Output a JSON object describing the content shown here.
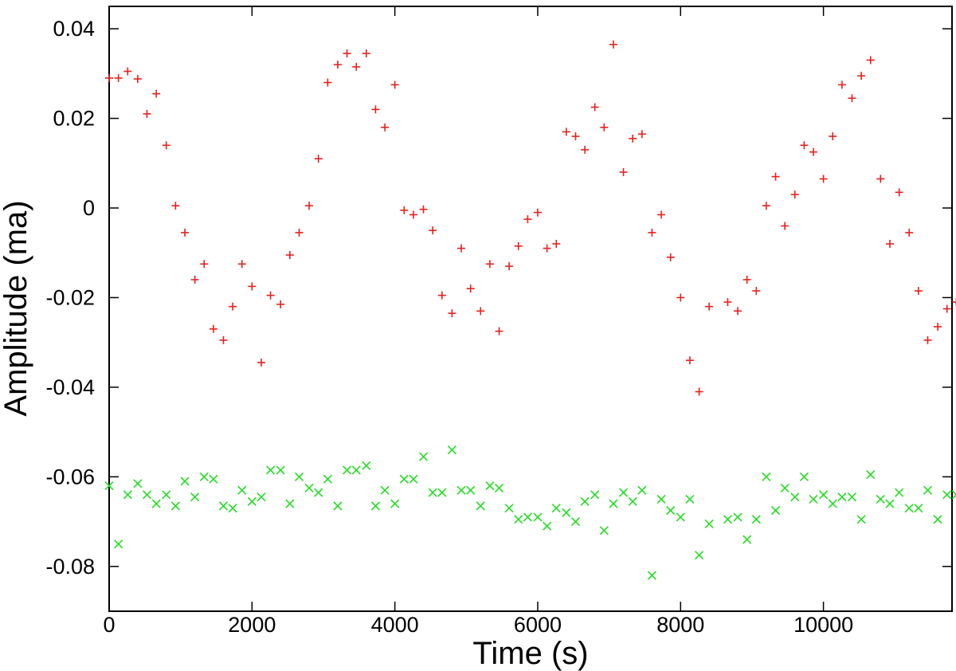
{
  "chart_data": {
    "type": "scatter",
    "title": "",
    "xlabel": "Time (s)",
    "ylabel": "Amplitude (ma)",
    "xlim": [
      0,
      11800
    ],
    "ylim": [
      -0.09,
      0.045
    ],
    "grid": false,
    "legend": "none",
    "x_ticks": [
      0,
      2000,
      4000,
      6000,
      8000,
      10000
    ],
    "x_tick_labels": [
      "0",
      "2000",
      "4000",
      "6000",
      "8000",
      "10000"
    ],
    "y_ticks": [
      0.04,
      0.02,
      0,
      -0.02,
      -0.04,
      -0.06,
      -0.08
    ],
    "y_tick_labels": [
      "0.04",
      "0.02",
      "0",
      "-0.02",
      "-0.04",
      "-0.06",
      "-0.08"
    ],
    "series": [
      {
        "marker": "plus",
        "color": "#e8201c",
        "points": [
          [
            0,
            0.029
          ],
          [
            130,
            0.029
          ],
          [
            260,
            0.0305
          ],
          [
            400,
            0.0288
          ],
          [
            530,
            0.021
          ],
          [
            660,
            0.0255
          ],
          [
            800,
            0.014
          ],
          [
            930,
            0.0005
          ],
          [
            1060,
            -0.0055
          ],
          [
            1200,
            -0.016
          ],
          [
            1330,
            -0.0125
          ],
          [
            1460,
            -0.027
          ],
          [
            1600,
            -0.0295
          ],
          [
            1730,
            -0.022
          ],
          [
            1860,
            -0.0125
          ],
          [
            2000,
            -0.0175
          ],
          [
            2130,
            -0.0345
          ],
          [
            2260,
            -0.0195
          ],
          [
            2400,
            -0.0215
          ],
          [
            2530,
            -0.0105
          ],
          [
            2660,
            -0.0055
          ],
          [
            2800,
            0.0005
          ],
          [
            2930,
            0.011
          ],
          [
            3060,
            0.028
          ],
          [
            3200,
            0.032
          ],
          [
            3330,
            0.0345
          ],
          [
            3460,
            0.0315
          ],
          [
            3600,
            0.0345
          ],
          [
            3730,
            0.022
          ],
          [
            3860,
            0.018
          ],
          [
            4000,
            0.0275
          ],
          [
            4130,
            -0.0005
          ],
          [
            4260,
            -0.0015
          ],
          [
            4400,
            -0.0003
          ],
          [
            4530,
            -0.005
          ],
          [
            4660,
            -0.0195
          ],
          [
            4800,
            -0.0235
          ],
          [
            4930,
            -0.009
          ],
          [
            5060,
            -0.018
          ],
          [
            5200,
            -0.023
          ],
          [
            5330,
            -0.0125
          ],
          [
            5460,
            -0.0275
          ],
          [
            5600,
            -0.013
          ],
          [
            5730,
            -0.0085
          ],
          [
            5860,
            -0.0025
          ],
          [
            6000,
            -0.001
          ],
          [
            6130,
            -0.009
          ],
          [
            6260,
            -0.008
          ],
          [
            6400,
            0.017
          ],
          [
            6530,
            0.016
          ],
          [
            6660,
            0.013
          ],
          [
            6800,
            0.0225
          ],
          [
            6930,
            0.018
          ],
          [
            7060,
            0.0365
          ],
          [
            7200,
            0.008
          ],
          [
            7330,
            0.0155
          ],
          [
            7460,
            0.0165
          ],
          [
            7600,
            -0.0055
          ],
          [
            7730,
            -0.0015
          ],
          [
            7860,
            -0.011
          ],
          [
            8000,
            -0.02
          ],
          [
            8130,
            -0.034
          ],
          [
            8260,
            -0.041
          ],
          [
            8400,
            -0.022
          ],
          [
            8660,
            -0.021
          ],
          [
            8800,
            -0.023
          ],
          [
            8930,
            -0.016
          ],
          [
            9060,
            -0.0185
          ],
          [
            9200,
            0.0005
          ],
          [
            9330,
            0.007
          ],
          [
            9460,
            -0.004
          ],
          [
            9600,
            0.003
          ],
          [
            9730,
            0.014
          ],
          [
            9860,
            0.0125
          ],
          [
            10000,
            0.0065
          ],
          [
            10130,
            0.016
          ],
          [
            10260,
            0.0275
          ],
          [
            10400,
            0.0245
          ],
          [
            10530,
            0.0295
          ],
          [
            10660,
            0.033
          ],
          [
            10800,
            0.0065
          ],
          [
            10930,
            -0.008
          ],
          [
            11060,
            0.0035
          ],
          [
            11200,
            -0.0055
          ],
          [
            11330,
            -0.0185
          ],
          [
            11460,
            -0.0295
          ],
          [
            11600,
            -0.0265
          ],
          [
            11730,
            -0.0225
          ],
          [
            11860,
            -0.021
          ]
        ]
      },
      {
        "marker": "cross",
        "color": "#22dd22",
        "points": [
          [
            0,
            -0.062
          ],
          [
            130,
            -0.075
          ],
          [
            260,
            -0.064
          ],
          [
            400,
            -0.0615
          ],
          [
            530,
            -0.064
          ],
          [
            660,
            -0.066
          ],
          [
            800,
            -0.064
          ],
          [
            930,
            -0.0665
          ],
          [
            1060,
            -0.061
          ],
          [
            1200,
            -0.0645
          ],
          [
            1330,
            -0.06
          ],
          [
            1460,
            -0.0605
          ],
          [
            1600,
            -0.0665
          ],
          [
            1730,
            -0.067
          ],
          [
            1860,
            -0.063
          ],
          [
            2000,
            -0.0655
          ],
          [
            2130,
            -0.0645
          ],
          [
            2260,
            -0.0585
          ],
          [
            2400,
            -0.0585
          ],
          [
            2530,
            -0.066
          ],
          [
            2660,
            -0.06
          ],
          [
            2800,
            -0.0625
          ],
          [
            2930,
            -0.0635
          ],
          [
            3060,
            -0.0605
          ],
          [
            3200,
            -0.0665
          ],
          [
            3330,
            -0.0585
          ],
          [
            3460,
            -0.0585
          ],
          [
            3600,
            -0.0575
          ],
          [
            3730,
            -0.0665
          ],
          [
            3860,
            -0.063
          ],
          [
            4000,
            -0.066
          ],
          [
            4130,
            -0.0605
          ],
          [
            4260,
            -0.0605
          ],
          [
            4400,
            -0.0555
          ],
          [
            4530,
            -0.0635
          ],
          [
            4660,
            -0.0635
          ],
          [
            4800,
            -0.054
          ],
          [
            4930,
            -0.063
          ],
          [
            5060,
            -0.063
          ],
          [
            5200,
            -0.0665
          ],
          [
            5330,
            -0.062
          ],
          [
            5460,
            -0.0625
          ],
          [
            5600,
            -0.067
          ],
          [
            5730,
            -0.0695
          ],
          [
            5860,
            -0.069
          ],
          [
            6000,
            -0.069
          ],
          [
            6130,
            -0.071
          ],
          [
            6260,
            -0.067
          ],
          [
            6400,
            -0.068
          ],
          [
            6530,
            -0.07
          ],
          [
            6660,
            -0.0655
          ],
          [
            6800,
            -0.064
          ],
          [
            6930,
            -0.072
          ],
          [
            7060,
            -0.066
          ],
          [
            7200,
            -0.0635
          ],
          [
            7330,
            -0.0655
          ],
          [
            7460,
            -0.063
          ],
          [
            7600,
            -0.082
          ],
          [
            7730,
            -0.065
          ],
          [
            7860,
            -0.0675
          ],
          [
            8000,
            -0.069
          ],
          [
            8130,
            -0.065
          ],
          [
            8260,
            -0.0775
          ],
          [
            8400,
            -0.0705
          ],
          [
            8660,
            -0.0695
          ],
          [
            8800,
            -0.069
          ],
          [
            8930,
            -0.074
          ],
          [
            9060,
            -0.0695
          ],
          [
            9200,
            -0.06
          ],
          [
            9330,
            -0.0675
          ],
          [
            9460,
            -0.0625
          ],
          [
            9600,
            -0.0645
          ],
          [
            9730,
            -0.06
          ],
          [
            9860,
            -0.065
          ],
          [
            10000,
            -0.064
          ],
          [
            10130,
            -0.066
          ],
          [
            10260,
            -0.0645
          ],
          [
            10400,
            -0.0645
          ],
          [
            10530,
            -0.0695
          ],
          [
            10660,
            -0.0595
          ],
          [
            10800,
            -0.065
          ],
          [
            10930,
            -0.066
          ],
          [
            11060,
            -0.0635
          ],
          [
            11200,
            -0.067
          ],
          [
            11330,
            -0.067
          ],
          [
            11460,
            -0.063
          ],
          [
            11600,
            -0.0695
          ],
          [
            11730,
            -0.064
          ],
          [
            11860,
            -0.064
          ]
        ]
      }
    ]
  }
}
